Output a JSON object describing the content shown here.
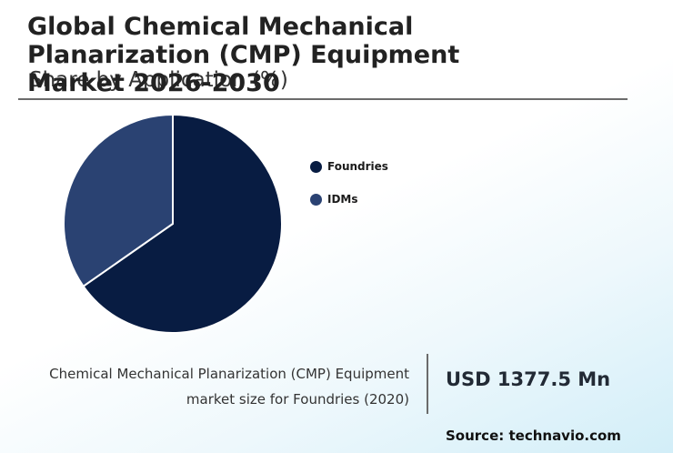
{
  "header": {
    "title": "Global Chemical Mechanical Planarization (CMP) Equipment Market 2026-2030",
    "subtitle": "Share by Application (%)"
  },
  "chart_data": {
    "type": "pie",
    "categories": [
      "Foundries",
      "IDMs"
    ],
    "values": [
      65.3,
      34.7
    ],
    "colors": [
      "#081c42",
      "#2a4272"
    ],
    "start_angle_deg": 0,
    "direction": "clockwise",
    "legend_placement": "right"
  },
  "legend": {
    "items": [
      {
        "label": "Foundries",
        "color": "#081c42"
      },
      {
        "label": "IDMs",
        "color": "#2a4272"
      }
    ]
  },
  "footer": {
    "caption_line1": "Chemical Mechanical Planarization (CMP) Equipment",
    "caption_line2": "market size for Foundries (2020)",
    "market_value": "USD 1377.5 Mn",
    "source": "Source: technavio.com"
  }
}
